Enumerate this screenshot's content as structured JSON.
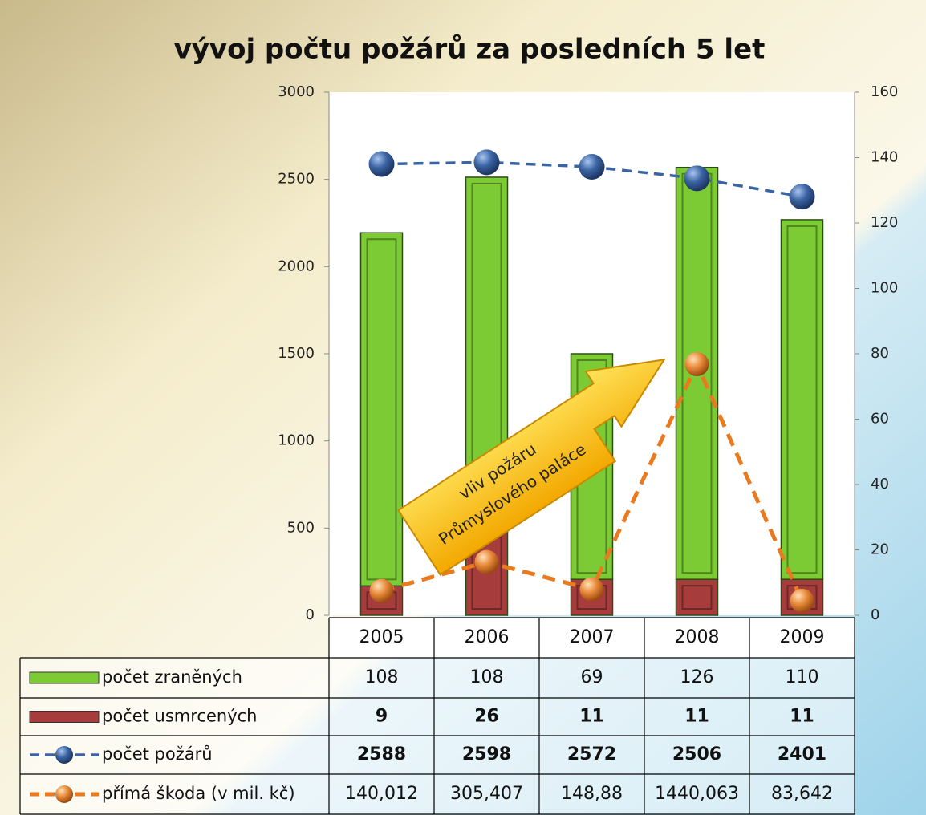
{
  "chart_data": {
    "type": "bar-line-table",
    "title": "vývoj počtu požárů za posledních 5 let",
    "categories": [
      "2005",
      "2006",
      "2007",
      "2008",
      "2009"
    ],
    "series": [
      {
        "name": "počet zraněných",
        "type": "bar",
        "axis": "y2",
        "color": "#7ccb35",
        "values": [
          108,
          108,
          69,
          126,
          110
        ]
      },
      {
        "name": "počet usmrcených",
        "type": "bar",
        "axis": "y2",
        "color": "#a63c3c",
        "values": [
          9,
          26,
          11,
          11,
          11
        ]
      },
      {
        "name": "počet požárů",
        "type": "line",
        "axis": "y",
        "color": "#3b64a3",
        "values": [
          2588,
          2598,
          2572,
          2506,
          2401
        ]
      },
      {
        "name": "přímá škoda (v mil. kč)",
        "type": "line",
        "axis": "y",
        "color": "#ea7a1f",
        "values": [
          140.012,
          305.407,
          148.88,
          1440.063,
          83.642
        ],
        "value_labels": [
          "140,012",
          "305,407",
          "148,88",
          "1440,063",
          "83,642"
        ]
      }
    ],
    "ylim": [
      0,
      3000
    ],
    "yticks": [
      0,
      500,
      1000,
      1500,
      2000,
      2500,
      3000
    ],
    "y2lim": [
      0,
      160
    ],
    "y2ticks": [
      0,
      20,
      40,
      60,
      80,
      100,
      120,
      140,
      160
    ],
    "annotation": [
      "vliv požáru",
      "Průmyslového paláce"
    ]
  }
}
